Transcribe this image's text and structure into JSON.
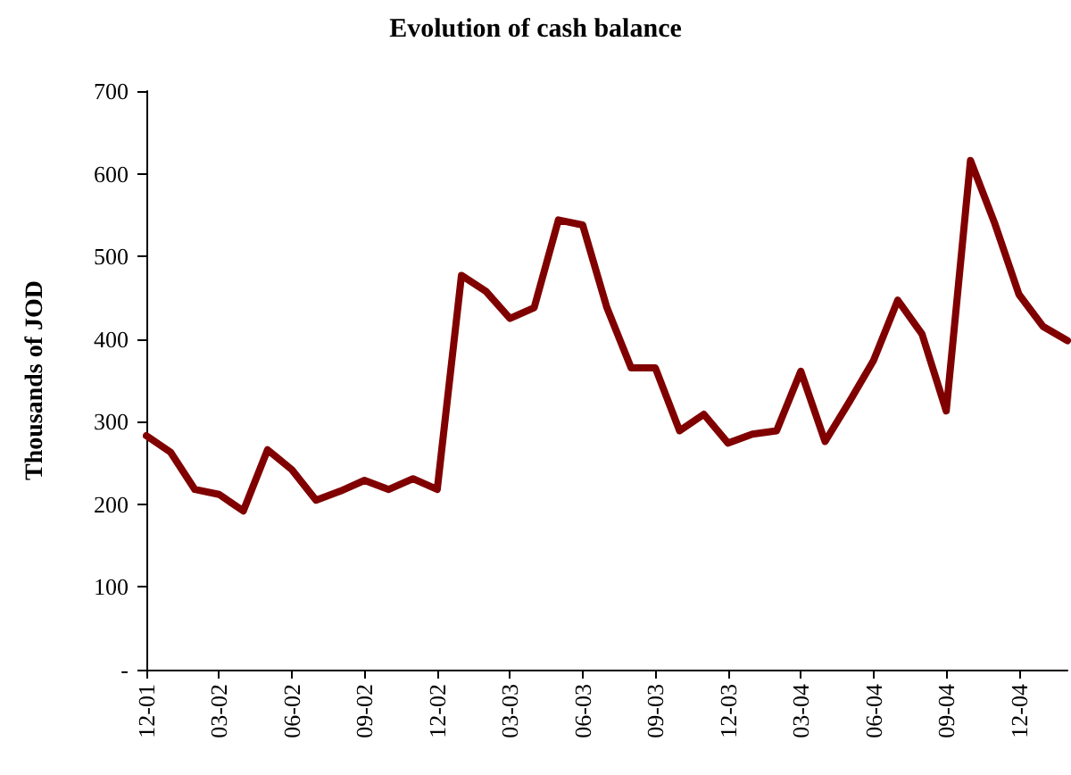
{
  "chart_data": {
    "type": "line",
    "title": "Evolution of cash balance",
    "ylabel": "Thousands of JOD",
    "categories": [
      "12-01",
      null,
      null,
      "03-02",
      null,
      null,
      "06-02",
      null,
      null,
      "09-02",
      null,
      null,
      "12-02",
      null,
      null,
      "03-03",
      null,
      null,
      "06-03",
      null,
      null,
      "09-03",
      null,
      null,
      "12-03",
      null,
      null,
      "03-04",
      null,
      null,
      "06-04",
      null,
      null,
      "09-04",
      null,
      null,
      "12-04",
      null,
      null
    ],
    "series": [
      {
        "color": "#800000",
        "values": [
          283,
          263,
          218,
          212,
          192,
          266,
          242,
          205,
          216,
          229,
          218,
          231,
          218,
          477,
          458,
          425,
          438,
          544,
          538,
          438,
          365,
          365,
          289,
          309,
          274,
          285,
          289,
          361,
          276,
          324,
          374,
          447,
          406,
          313,
          616,
          540,
          454,
          415,
          398
        ]
      }
    ],
    "ylim": [
      0,
      700
    ],
    "yticks": [
      {
        "value": 0,
        "label": "-"
      },
      100,
      200,
      300,
      400,
      500,
      600,
      700
    ],
    "grid": false,
    "marker": "none",
    "line_style": "solid"
  }
}
